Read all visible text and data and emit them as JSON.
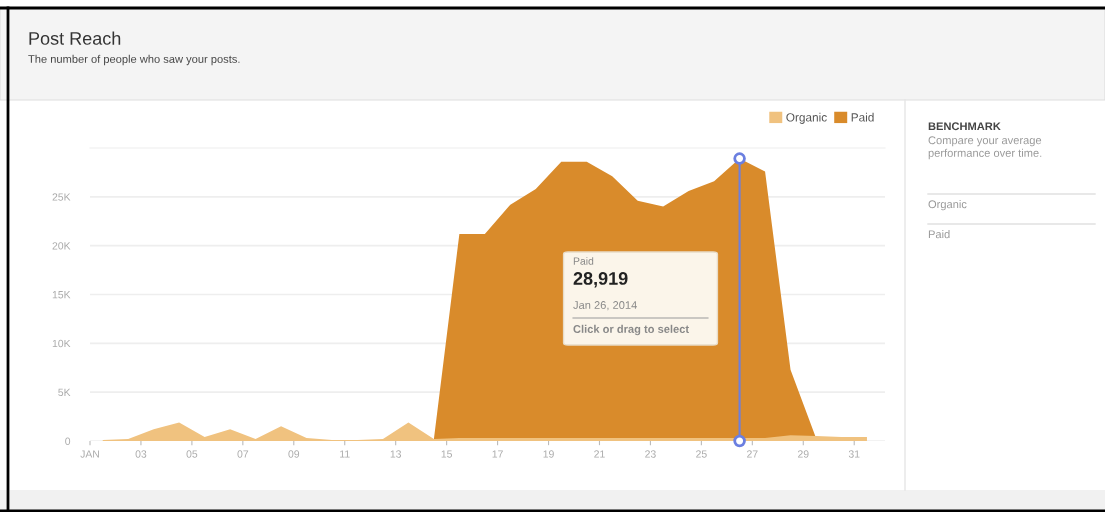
{
  "chart_data": {
    "type": "area",
    "title": "Post Reach",
    "subtitle": "The number of people who saw your posts.",
    "x": [
      "2014-01-01T12:00",
      "2014-01-02T12:00",
      "2014-01-03T12:00",
      "2014-01-04T12:00",
      "2014-01-05T12:00",
      "2014-01-06T12:00",
      "2014-01-07T12:00",
      "2014-01-08T12:00",
      "2014-01-09T12:00",
      "2014-01-10T12:00",
      "2014-01-11T12:00",
      "2014-01-12T12:00",
      "2014-01-13T12:00",
      "2014-01-14T12:00",
      "2014-01-15T12:00",
      "2014-01-16T12:00",
      "2014-01-17T12:00",
      "2014-01-18T12:00",
      "2014-01-19T12:00",
      "2014-01-20T12:00",
      "2014-01-21T12:00",
      "2014-01-22T12:00",
      "2014-01-23T12:00",
      "2014-01-24T12:00",
      "2014-01-25T12:00",
      "2014-01-26T12:00",
      "2014-01-27T12:00",
      "2014-01-28T12:00",
      "2014-01-29T12:00",
      "2014-01-30T12:00",
      "2014-01-31T12:00"
    ],
    "series": [
      {
        "name": "Paid",
        "color": "#d98b2b",
        "values": [
          0,
          0,
          0,
          0,
          0,
          0,
          0,
          0,
          0,
          0,
          0,
          0,
          0,
          200,
          21200,
          21200,
          24200,
          25800,
          28600,
          28600,
          27100,
          24600,
          24000,
          25600,
          26600,
          28919,
          27600,
          7300,
          300,
          0,
          0
        ]
      },
      {
        "type": "scatter",
        "color": "#6b7fe0",
        "marker": "circle",
        "x": [
          "2014-01-26T12:00",
          "2014-01-26T12:00"
        ],
        "values": [
          0,
          28919
        ]
      },
      {
        "name": "Organic",
        "color": "#f0c27f",
        "values": [
          100,
          200,
          1200,
          1900,
          400,
          1200,
          200,
          1500,
          300,
          100,
          100,
          200,
          1900,
          200,
          300,
          300,
          300,
          300,
          300,
          300,
          300,
          300,
          300,
          300,
          300,
          300,
          300,
          600,
          500,
          400,
          400
        ]
      }
    ],
    "xlim": [
      "2014-01-01T00:00",
      "2014-02-01T05:00"
    ],
    "xticks": [
      {
        "value": "2014-01-01",
        "label": "JAN"
      },
      {
        "value": "2014-01-03",
        "label": "03"
      },
      {
        "value": "2014-01-05",
        "label": "05"
      },
      {
        "value": "2014-01-07",
        "label": "07"
      },
      {
        "value": "2014-01-09",
        "label": "09"
      },
      {
        "value": "2014-01-11",
        "label": "11"
      },
      {
        "value": "2014-01-13",
        "label": "13"
      },
      {
        "value": "2014-01-15",
        "label": "15"
      },
      {
        "value": "2014-01-17",
        "label": "17"
      },
      {
        "value": "2014-01-19",
        "label": "19"
      },
      {
        "value": "2014-01-21",
        "label": "21"
      },
      {
        "value": "2014-01-23",
        "label": "23"
      },
      {
        "value": "2014-01-25",
        "label": "25"
      },
      {
        "value": "2014-01-27",
        "label": "27"
      },
      {
        "value": "2014-01-29",
        "label": "29"
      },
      {
        "value": "2014-01-31",
        "label": "31"
      }
    ],
    "ylim": [
      0,
      30000
    ],
    "yticks": [
      {
        "value": 0,
        "label": "0"
      },
      {
        "value": 5000,
        "label": "5K"
      },
      {
        "value": 10000,
        "label": "10K"
      },
      {
        "value": 15000,
        "label": "15K"
      },
      {
        "value": 20000,
        "label": "20K"
      },
      {
        "value": 25000,
        "label": "25K"
      }
    ],
    "grid": "y",
    "legend": "top right",
    "ref_lines": [
      {
        "axis": "x",
        "value": "2014-01-26T12:00",
        "label": null,
        "color": "#6b7fe0"
      }
    ],
    "annotations": [
      "Paid\n28,919\nJan 26, 2014\nClick or drag to select",
      "BENCHMARK",
      "Compare your average\nperformance over time.",
      "Organic",
      "Paid"
    ]
  }
}
